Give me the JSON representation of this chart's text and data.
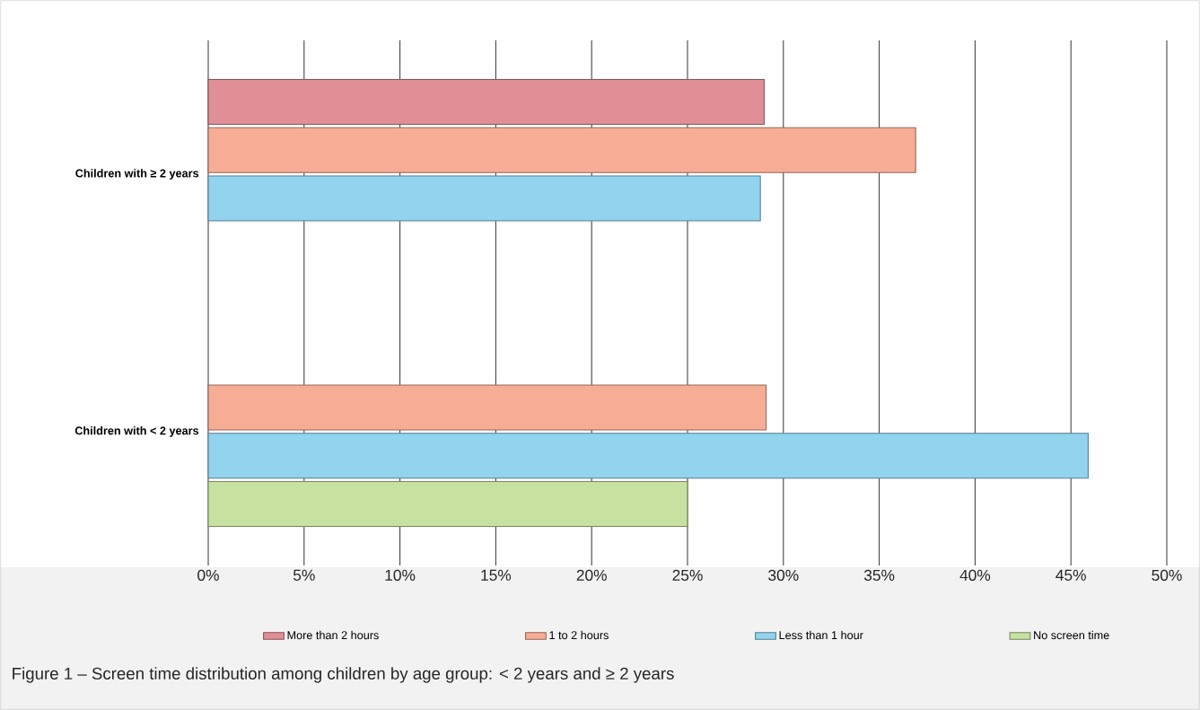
{
  "chart_data": {
    "type": "bar",
    "orientation": "horizontal",
    "categories": [
      "Children with ≥ 2 years",
      "Children with < 2 years"
    ],
    "series": [
      {
        "name": "More than 2 hours",
        "color": "#e08f96",
        "values": [
          29,
          null
        ]
      },
      {
        "name": "1 to 2 hours",
        "color": "#f7ad95",
        "values": [
          36.9,
          29.1
        ]
      },
      {
        "name": "Less than 1 hour",
        "color": "#92d3ee",
        "values": [
          28.8,
          45.9
        ]
      },
      {
        "name": "No screen time",
        "color": "#c6e1a0",
        "values": [
          null,
          25
        ]
      }
    ],
    "xlim": [
      0,
      50
    ],
    "xticks": [
      {
        "value": 0,
        "label": "0%"
      },
      {
        "value": 5,
        "label": "5%"
      },
      {
        "value": 10,
        "label": "10%"
      },
      {
        "value": 15,
        "label": "15%"
      },
      {
        "value": 20,
        "label": "20%"
      },
      {
        "value": 25,
        "label": "25%"
      },
      {
        "value": 30,
        "label": "30%"
      },
      {
        "value": 35,
        "label": "35%"
      },
      {
        "value": 40,
        "label": "40%"
      },
      {
        "value": 45,
        "label": "45%"
      },
      {
        "value": 50,
        "label": "50%"
      }
    ],
    "grid": "x",
    "legend": "bottom",
    "annotations": [
      "Figure 1 – Screen time distribution among children by age group: < 2 years and ≥ 2 years"
    ]
  }
}
